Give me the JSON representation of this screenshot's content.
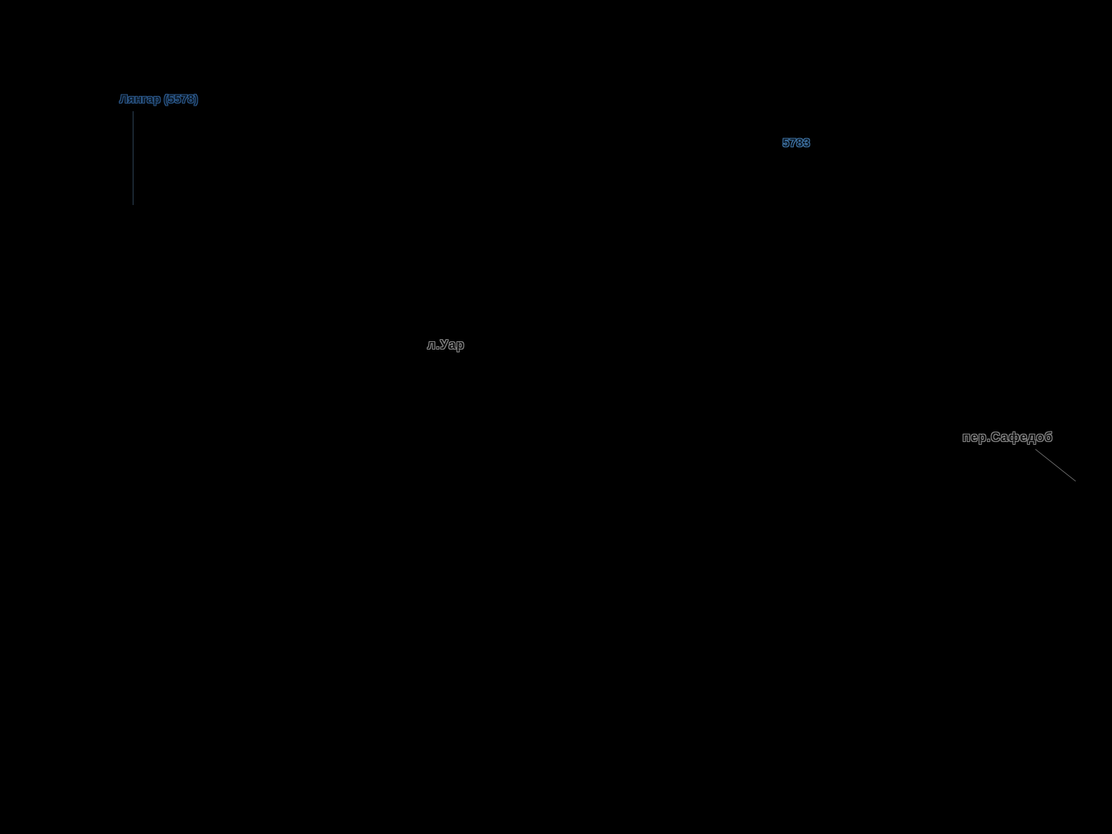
{
  "map_view": {
    "background": "#000000",
    "labels": [
      {
        "id": "peak-langar",
        "kind": "peak",
        "text": "Лянгар (5578)",
        "leader_line": "vertical"
      },
      {
        "id": "elevation-5783",
        "kind": "spot-elevation",
        "text": "5783",
        "leader_line": "none"
      },
      {
        "id": "glacier-uar",
        "kind": "glacier",
        "text": "л.Уар",
        "leader_line": "none"
      },
      {
        "id": "pass-safedob",
        "kind": "pass",
        "text": "пер.Сафедоб",
        "leader_line": "diagonal"
      }
    ]
  },
  "colors": {
    "bg": "#000000",
    "peak-fill": "#0a1826",
    "peak-halo": "#2d5a8e",
    "elev-fill": "#0a1826",
    "elev-halo": "#4176a8",
    "terrain-fill": "#101010",
    "terrain-halo": "#8c8c8c",
    "peak-leader": "#31475c",
    "pass-leader": "#6e6e6e"
  }
}
